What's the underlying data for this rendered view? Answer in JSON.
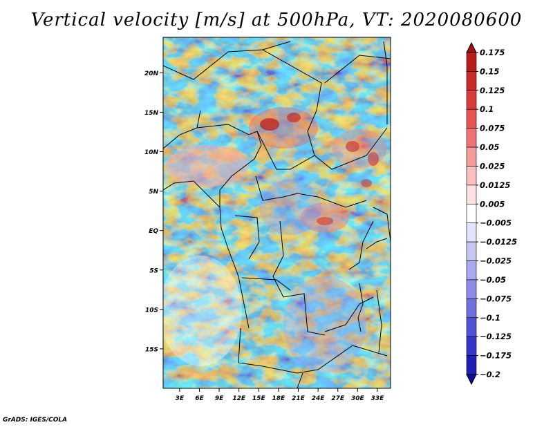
{
  "title": "Vertical velocity [m/s] at 500hPa, VT: 2020080600",
  "credit": "GrADS: IGES/COLA",
  "map": {
    "lat_labels": [
      "20N",
      "15N",
      "10N",
      "5N",
      "EQ",
      "5S",
      "10S",
      "15S"
    ],
    "lat_values": [
      20,
      15,
      10,
      5,
      0,
      -5,
      -10,
      -15
    ],
    "lon_labels": [
      "3E",
      "6E",
      "9E",
      "12E",
      "15E",
      "18E",
      "21E",
      "24E",
      "27E",
      "30E",
      "33E"
    ],
    "lon_values": [
      3,
      6,
      9,
      12,
      15,
      18,
      21,
      24,
      27,
      30,
      33
    ],
    "lat_range": [
      -20,
      24.5
    ],
    "lon_range": [
      0.5,
      35
    ]
  },
  "colorbar": {
    "labels": [
      "0.175",
      "0.15",
      "0.125",
      "0.1",
      "0.075",
      "0.05",
      "0.025",
      "0.0125",
      "0.005",
      "−0.005",
      "−0.0125",
      "−0.025",
      "−0.05",
      "−0.075",
      "−0.1",
      "−0.125",
      "−0.175",
      "−0.2"
    ],
    "colors": [
      "#a50f15",
      "#b81c1c",
      "#c92a2a",
      "#d93b3b",
      "#e65454",
      "#ef7373",
      "#f59b9b",
      "#f9c0c0",
      "#fde0e0",
      "#ffffff",
      "#e3e3fb",
      "#c6c6f5",
      "#a9a9ef",
      "#8c8ce8",
      "#6f6fe0",
      "#5252d6",
      "#3535c9",
      "#1e1eb4",
      "#0d0d96"
    ]
  }
}
